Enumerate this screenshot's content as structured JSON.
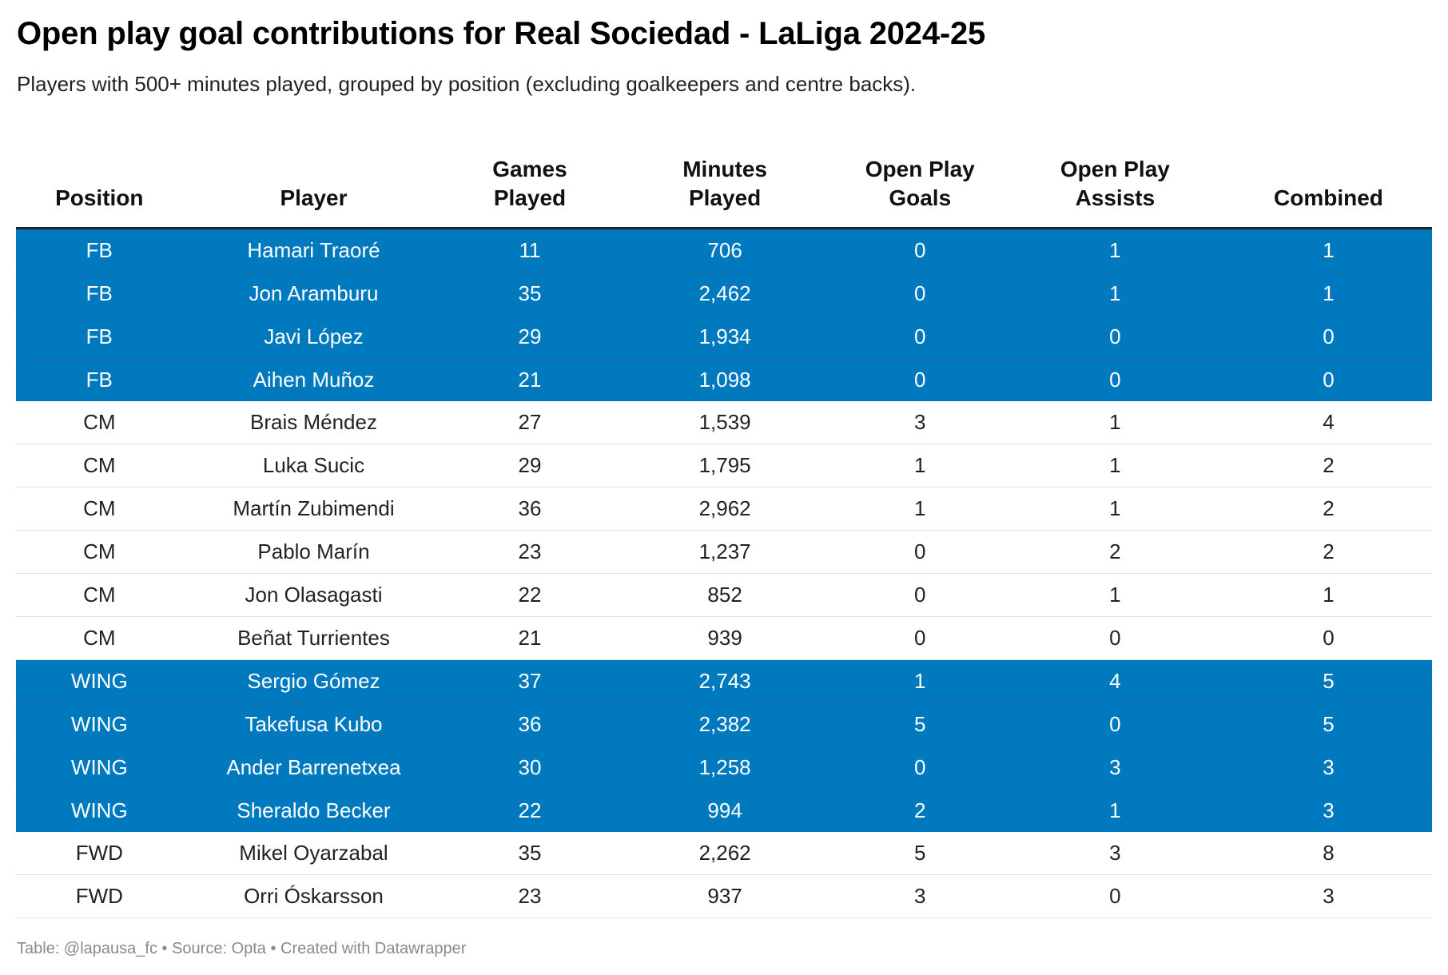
{
  "title": "Open play goal contributions for Real Sociedad - LaLiga 2024-25",
  "subtitle": "Players with 500+ minutes played, grouped by position (excluding goalkeepers and centre backs).",
  "footer": "Table: @lapausa_fc • Source: Opta • Created with Datawrapper",
  "colors": {
    "highlight": "#0079bf",
    "highlight_text": "#ffffff"
  },
  "chart_data": {
    "type": "table",
    "columns": [
      "Position",
      "Player",
      "Games Played",
      "Minutes Played",
      "Open Play Goals",
      "Open Play Assists",
      "Combined"
    ],
    "rows": [
      {
        "position": "FB",
        "player": "Hamari Traoré",
        "games": "11",
        "minutes": "706",
        "goals": "0",
        "assists": "1",
        "combined": "1",
        "highlighted": true
      },
      {
        "position": "FB",
        "player": "Jon Aramburu",
        "games": "35",
        "minutes": "2,462",
        "goals": "0",
        "assists": "1",
        "combined": "1",
        "highlighted": true
      },
      {
        "position": "FB",
        "player": "Javi López",
        "games": "29",
        "minutes": "1,934",
        "goals": "0",
        "assists": "0",
        "combined": "0",
        "highlighted": true
      },
      {
        "position": "FB",
        "player": "Aihen Muñoz",
        "games": "21",
        "minutes": "1,098",
        "goals": "0",
        "assists": "0",
        "combined": "0",
        "highlighted": true
      },
      {
        "position": "CM",
        "player": "Brais Méndez",
        "games": "27",
        "minutes": "1,539",
        "goals": "3",
        "assists": "1",
        "combined": "4",
        "highlighted": false
      },
      {
        "position": "CM",
        "player": "Luka Sucic",
        "games": "29",
        "minutes": "1,795",
        "goals": "1",
        "assists": "1",
        "combined": "2",
        "highlighted": false
      },
      {
        "position": "CM",
        "player": "Martín Zubimendi",
        "games": "36",
        "minutes": "2,962",
        "goals": "1",
        "assists": "1",
        "combined": "2",
        "highlighted": false
      },
      {
        "position": "CM",
        "player": "Pablo Marín",
        "games": "23",
        "minutes": "1,237",
        "goals": "0",
        "assists": "2",
        "combined": "2",
        "highlighted": false
      },
      {
        "position": "CM",
        "player": "Jon Olasagasti",
        "games": "22",
        "minutes": "852",
        "goals": "0",
        "assists": "1",
        "combined": "1",
        "highlighted": false
      },
      {
        "position": "CM",
        "player": "Beñat Turrientes",
        "games": "21",
        "minutes": "939",
        "goals": "0",
        "assists": "0",
        "combined": "0",
        "highlighted": false
      },
      {
        "position": "WING",
        "player": "Sergio Gómez",
        "games": "37",
        "minutes": "2,743",
        "goals": "1",
        "assists": "4",
        "combined": "5",
        "highlighted": true
      },
      {
        "position": "WING",
        "player": "Takefusa Kubo",
        "games": "36",
        "minutes": "2,382",
        "goals": "5",
        "assists": "0",
        "combined": "5",
        "highlighted": true
      },
      {
        "position": "WING",
        "player": "Ander Barrenetxea",
        "games": "30",
        "minutes": "1,258",
        "goals": "0",
        "assists": "3",
        "combined": "3",
        "highlighted": true
      },
      {
        "position": "WING",
        "player": "Sheraldo Becker",
        "games": "22",
        "minutes": "994",
        "goals": "2",
        "assists": "1",
        "combined": "3",
        "highlighted": true
      },
      {
        "position": "FWD",
        "player": "Mikel Oyarzabal",
        "games": "35",
        "minutes": "2,262",
        "goals": "5",
        "assists": "3",
        "combined": "8",
        "highlighted": false
      },
      {
        "position": "FWD",
        "player": "Orri Óskarsson",
        "games": "23",
        "minutes": "937",
        "goals": "3",
        "assists": "0",
        "combined": "3",
        "highlighted": false
      }
    ]
  }
}
